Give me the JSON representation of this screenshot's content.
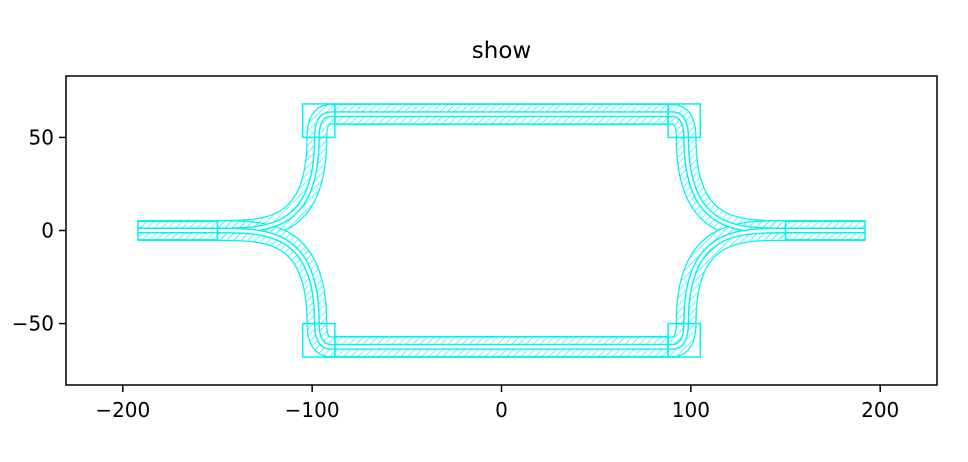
{
  "chart_data": {
    "type": "layout",
    "title": "show",
    "xlabel": "",
    "ylabel": "",
    "xlim": [
      -230,
      230
    ],
    "ylim": [
      -83,
      83
    ],
    "x_ticks": [
      -200,
      -100,
      0,
      100,
      200
    ],
    "x_tick_labels": [
      "−200",
      "−100",
      "0",
      "100",
      "200"
    ],
    "y_ticks": [
      50,
      0,
      -50
    ],
    "y_tick_labels": [
      "50",
      "0",
      "−50"
    ],
    "grid": false,
    "style": {
      "color": "#00f2f2",
      "hatch": "diagonal"
    },
    "waveguide": {
      "core_width": 1,
      "cladding_width": 10
    },
    "straights": [
      {
        "name": "input",
        "x": [
          -192,
          -150
        ],
        "y": [
          0,
          0
        ]
      },
      {
        "name": "output",
        "x": [
          150,
          192
        ],
        "y": [
          0,
          0
        ]
      },
      {
        "name": "top-arm",
        "x": [
          -90,
          90
        ],
        "y": [
          62.5,
          62.5
        ]
      },
      {
        "name": "bottom-arm",
        "x": [
          -90,
          90
        ],
        "y": [
          -62.5,
          -62.5
        ]
      }
    ],
    "bends": [
      {
        "name": "left-top-sbend",
        "from": [
          -150,
          0
        ],
        "to": [
          -97.5,
          50
        ],
        "type": "s"
      },
      {
        "name": "left-bottom-sbend",
        "from": [
          -150,
          0
        ],
        "to": [
          -97.5,
          -50
        ],
        "type": "s"
      },
      {
        "name": "right-top-sbend",
        "from": [
          150,
          0
        ],
        "to": [
          97.5,
          50
        ],
        "type": "s"
      },
      {
        "name": "right-bottom-sbend",
        "from": [
          150,
          0
        ],
        "to": [
          97.5,
          -50
        ],
        "type": "s"
      },
      {
        "name": "left-top-corner",
        "from": [
          -97.5,
          50
        ],
        "to": [
          -90,
          62.5
        ],
        "type": "arc"
      },
      {
        "name": "left-bottom-corner",
        "from": [
          -97.5,
          -50
        ],
        "to": [
          -90,
          -62.5
        ],
        "type": "arc"
      },
      {
        "name": "right-top-corner",
        "from": [
          97.5,
          50
        ],
        "to": [
          90,
          62.5
        ],
        "type": "arc"
      },
      {
        "name": "right-bottom-corner",
        "from": [
          97.5,
          -50
        ],
        "to": [
          90,
          -62.5
        ],
        "type": "arc"
      }
    ],
    "boxes": [
      {
        "name": "input-box",
        "x": [
          -192,
          -150
        ],
        "y": [
          -5,
          5
        ]
      },
      {
        "name": "output-box",
        "x": [
          150,
          192
        ],
        "y": [
          -5,
          5
        ]
      },
      {
        "name": "left-top-corner-box",
        "x": [
          -105,
          -88
        ],
        "y": [
          50,
          68
        ]
      },
      {
        "name": "right-top-corner-box",
        "x": [
          88,
          105
        ],
        "y": [
          50,
          68
        ]
      },
      {
        "name": "left-bottom-corner-box",
        "x": [
          -105,
          -88
        ],
        "y": [
          -68,
          -50
        ]
      },
      {
        "name": "right-bottom-corner-box",
        "x": [
          88,
          105
        ],
        "y": [
          -68,
          -50
        ]
      },
      {
        "name": "top-arm-box",
        "x": [
          -88,
          88
        ],
        "y": [
          57,
          68
        ]
      },
      {
        "name": "bottom-arm-box",
        "x": [
          -88,
          88
        ],
        "y": [
          -68,
          -57
        ]
      }
    ]
  }
}
